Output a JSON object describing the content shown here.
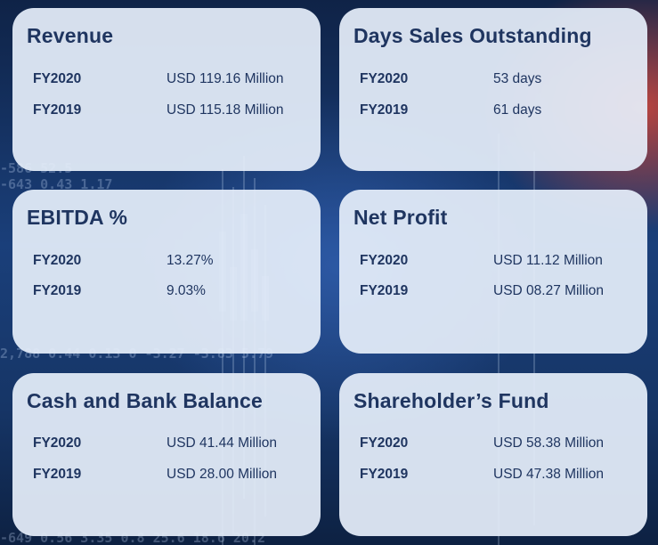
{
  "cards": [
    {
      "title": "Revenue",
      "rows": [
        {
          "year": "FY2020",
          "value": "USD 119.16 Million"
        },
        {
          "year": "FY2019",
          "value": "USD 115.18 Million"
        }
      ]
    },
    {
      "title": "Days Sales Outstanding",
      "rows": [
        {
          "year": "FY2020",
          "value": "53 days"
        },
        {
          "year": "FY2019",
          "value": "61 days"
        }
      ]
    },
    {
      "title": "EBITDA %",
      "rows": [
        {
          "year": "FY2020",
          "value": "13.27%"
        },
        {
          "year": "FY2019",
          "value": "9.03%"
        }
      ]
    },
    {
      "title": "Net Profit",
      "rows": [
        {
          "year": "FY2020",
          "value": "USD 11.12 Million"
        },
        {
          "year": "FY2019",
          "value": "USD 08.27 Million"
        }
      ]
    },
    {
      "title": "Cash and Bank Balance",
      "rows": [
        {
          "year": "FY2020",
          "value": "USD 41.44 Million"
        },
        {
          "year": "FY2019",
          "value": "USD 28.00 Million"
        }
      ]
    },
    {
      "title": "Shareholder’s Fund",
      "rows": [
        {
          "year": "FY2020",
          "value": "USD 58.38 Million"
        },
        {
          "year": "FY2019",
          "value": "USD 47.38 Million"
        }
      ]
    }
  ],
  "colors": {
    "card_bg": "#e5eefa",
    "text": "#1f3560",
    "background": "#1a3f7a",
    "accent_red": "#d6483a"
  }
}
